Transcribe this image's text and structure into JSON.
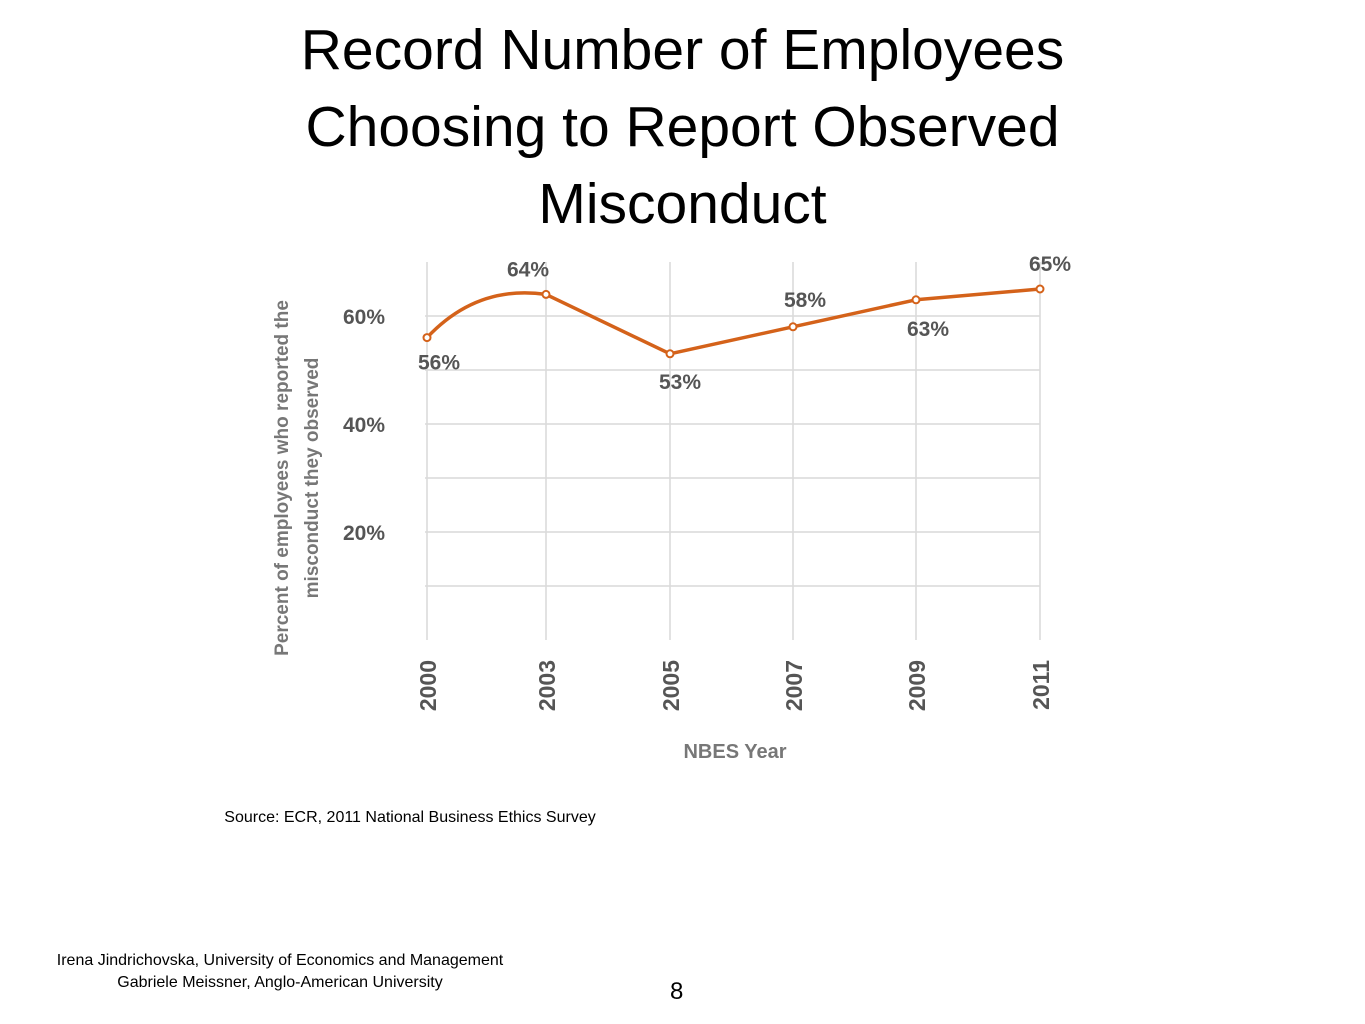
{
  "slide": {
    "title_lines": [
      "Record Number of Employees",
      "Choosing to Report Observed",
      "Misconduct"
    ],
    "source": "Source: ECR, 2011 National Business Ethics Survey",
    "credits": [
      "Irena Jindrichovska, University of Economics and Management",
      "Gabriele Meissner, Anglo-American University"
    ],
    "page_number": "8"
  },
  "chart_data": {
    "type": "line",
    "x": [
      "2000",
      "2003",
      "2005",
      "2007",
      "2009",
      "2011"
    ],
    "series": [
      {
        "values": [
          56,
          64,
          53,
          58,
          63,
          65
        ]
      }
    ],
    "data_labels": [
      "56%",
      "64%",
      "53%",
      "58%",
      "63%",
      "65%"
    ],
    "ylabel_lines": [
      "Percent of employees who reported the",
      "misconduct they observed"
    ],
    "xlabel": "NBES Year",
    "yticks": [
      20,
      40,
      60
    ],
    "ytick_labels": [
      "20%",
      "40%",
      "60%"
    ],
    "ylim": [
      0,
      70
    ],
    "grid": true,
    "colors": {
      "line": "#d4621a",
      "grid": "#d9d9d9",
      "tick_text": "#555555",
      "axis_label": "#777777"
    }
  }
}
